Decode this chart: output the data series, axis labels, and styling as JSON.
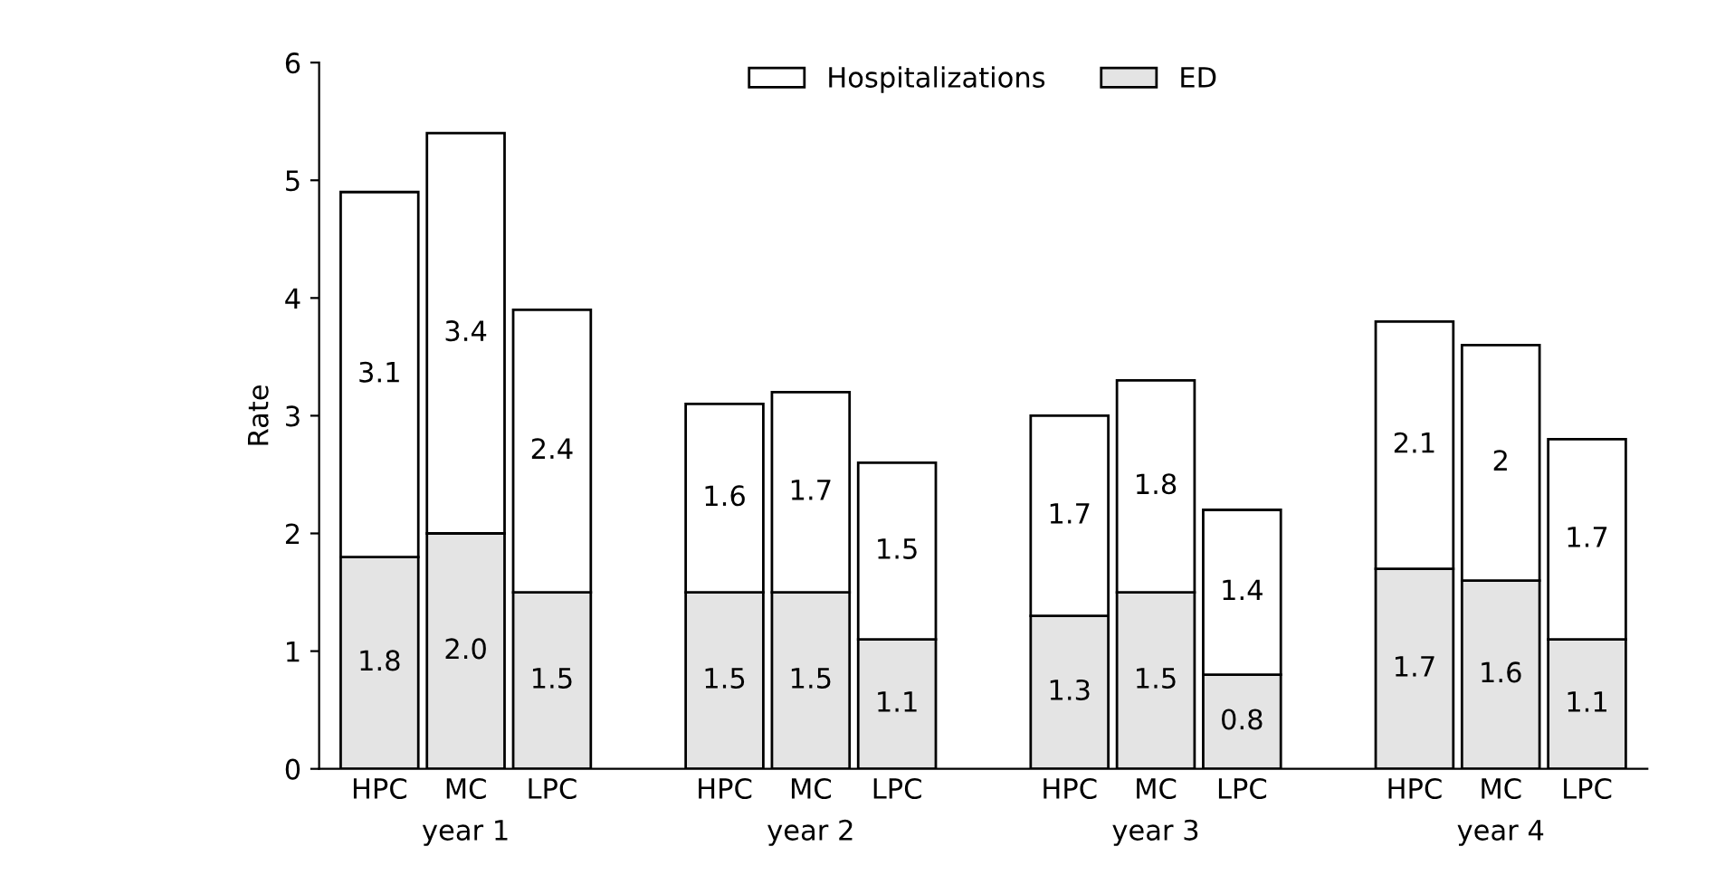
{
  "chart_data": {
    "type": "bar",
    "stacked": true,
    "ylabel": "Rate",
    "categories": [
      "HPC",
      "MC",
      "LPC",
      null,
      "HPC",
      "MC",
      "LPC",
      null,
      "HPC",
      "MC",
      "LPC",
      null,
      "HPC",
      "MC",
      "LPC"
    ],
    "series": [
      {
        "name": "ED",
        "color": "#e4e4e4",
        "values": [
          1.8,
          2.0,
          1.5,
          null,
          1.5,
          1.5,
          1.1,
          null,
          1.3,
          1.5,
          0.8,
          null,
          1.7,
          1.6,
          1.1
        ],
        "value_labels": [
          "1.8",
          "2.0",
          "1.5",
          null,
          "1.5",
          "1.5",
          "1.1",
          null,
          "1.3",
          "1.5",
          "0.8",
          null,
          "1.7",
          "1.6",
          "1.1"
        ]
      },
      {
        "name": "Hospitalizations",
        "color": "#ffffff",
        "values": [
          3.1,
          3.4,
          2.4,
          null,
          1.6,
          1.7,
          1.5,
          null,
          1.7,
          1.8,
          1.4,
          null,
          2.1,
          2,
          1.7
        ],
        "value_labels": [
          "3.1",
          "3.4",
          "2.4",
          null,
          "1.6",
          "1.7",
          "1.5",
          null,
          "1.7",
          "1.8",
          "1.4",
          null,
          "2.1",
          "2",
          "1.7"
        ]
      }
    ],
    "annotations": [
      "year 1",
      "year 2",
      "year 3",
      "year 4"
    ],
    "ylim": [
      0,
      6
    ],
    "yticks": [
      0,
      1,
      2,
      3,
      4,
      5,
      6
    ],
    "grid": false,
    "legend": "top"
  }
}
